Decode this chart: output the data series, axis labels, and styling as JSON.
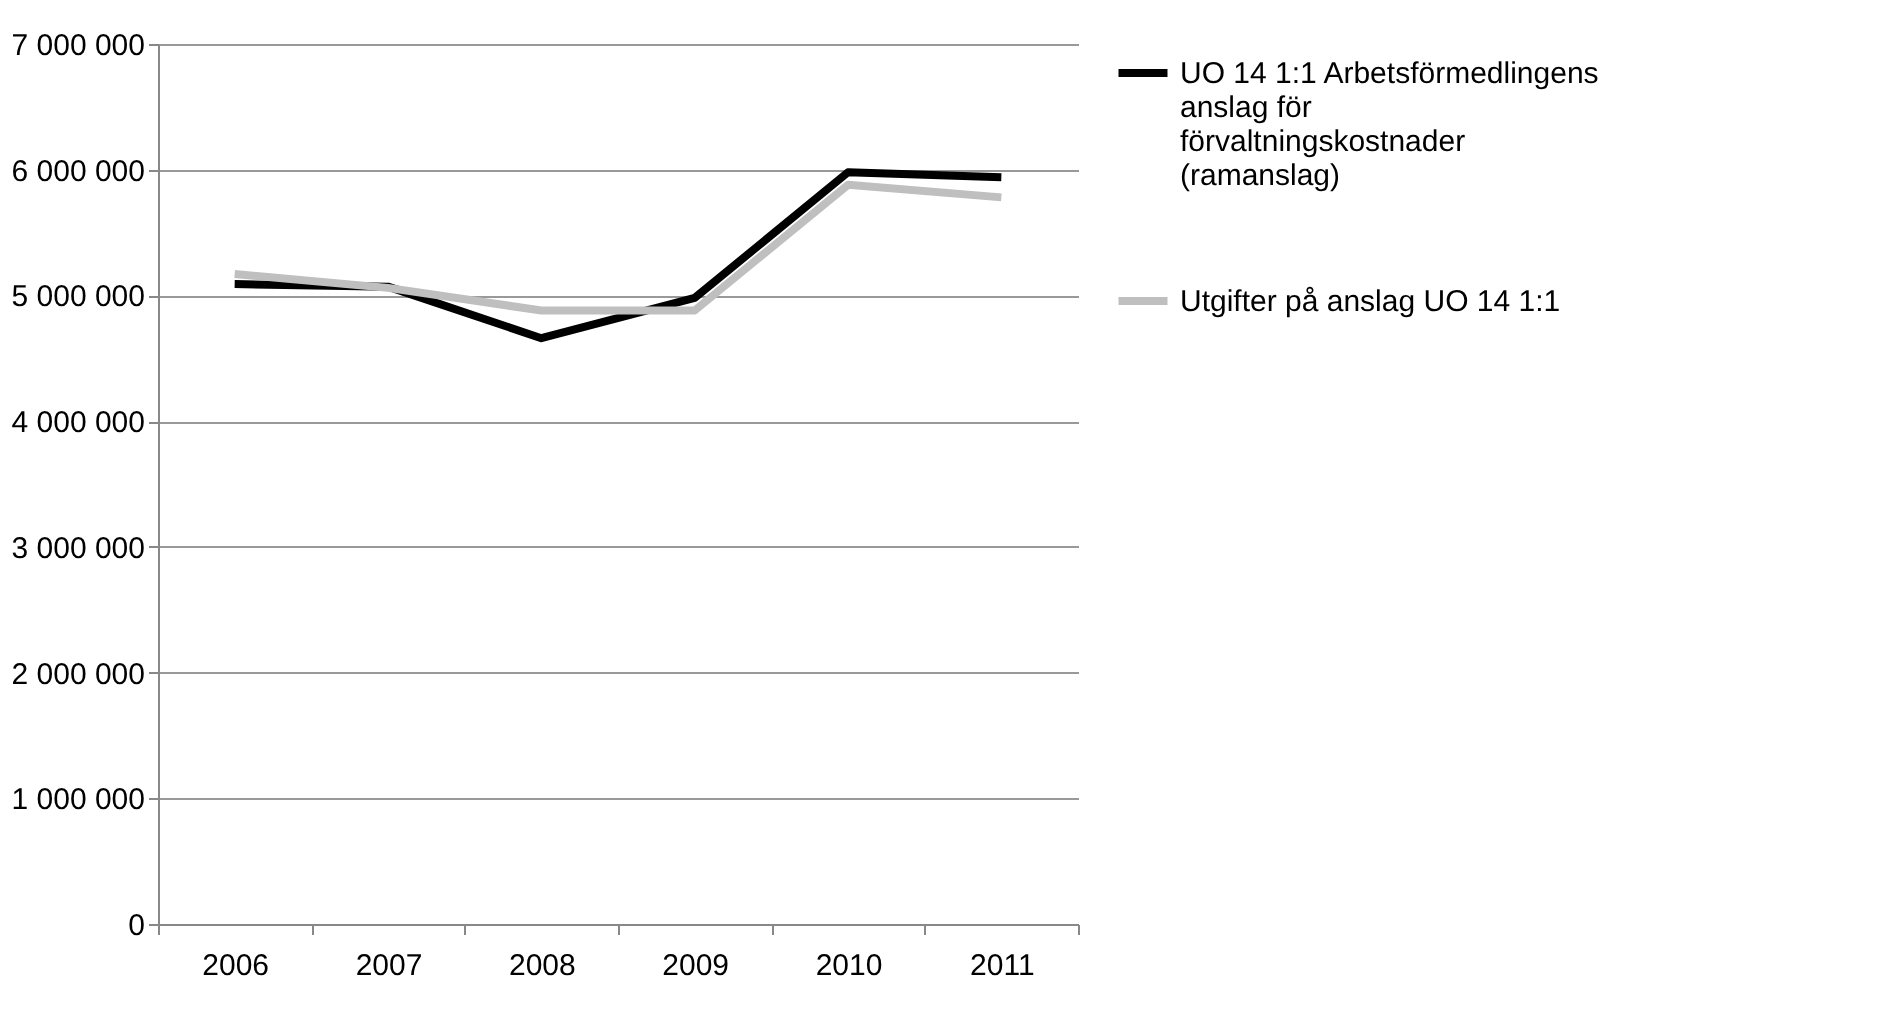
{
  "chart_data": {
    "type": "line",
    "categories": [
      "2006",
      "2007",
      "2008",
      "2009",
      "2010",
      "2011"
    ],
    "series": [
      {
        "name": "UO 14 1:1 Arbetsförmedlingens anslag för förvaltningskostnader (ramanslag)",
        "color": "#000000",
        "values": [
          5090000,
          5070000,
          4660000,
          4980000,
          5980000,
          5940000
        ]
      },
      {
        "name": "Utgifter på anslag UO 14 1:1",
        "color": "#bfbfbf",
        "values": [
          5170000,
          5060000,
          4880000,
          4880000,
          5880000,
          5780000
        ]
      }
    ],
    "ylim": [
      0,
      7000000
    ],
    "yticks": [
      0,
      1000000,
      2000000,
      3000000,
      4000000,
      5000000,
      6000000,
      7000000
    ],
    "grid": "y",
    "legend": "right",
    "marker": "none",
    "line_style": "solid"
  }
}
